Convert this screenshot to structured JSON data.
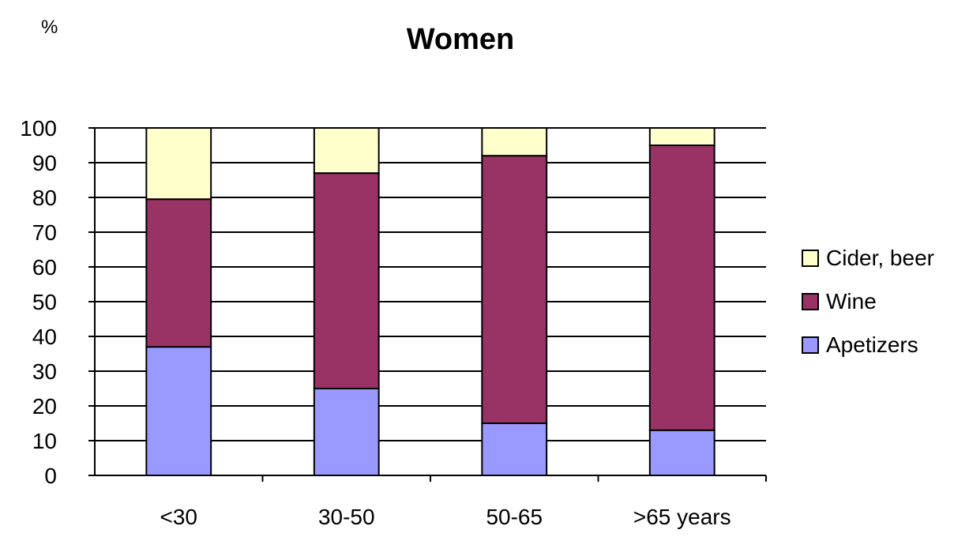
{
  "chart_data": {
    "type": "bar",
    "stacked": true,
    "title": "Women",
    "ylabel": "%",
    "xlabel": "",
    "categories": [
      "<30",
      "30-50",
      "50-65",
      ">65 years"
    ],
    "series": [
      {
        "name": "Apetizers",
        "color": "#9999ff",
        "values": [
          37,
          25,
          15,
          13
        ]
      },
      {
        "name": "Wine",
        "color": "#993366",
        "values": [
          42.5,
          62,
          77,
          82
        ]
      },
      {
        "name": "Cider, beer",
        "color": "#ffffcc",
        "values": [
          20.5,
          13,
          8,
          5
        ]
      }
    ],
    "legend_order": [
      "Cider, beer",
      "Wine",
      "Apetizers"
    ],
    "ylim": [
      0,
      100
    ],
    "yticks": [
      "0",
      "10",
      "20",
      "30",
      "40",
      "50",
      "60",
      "70",
      "80",
      "90",
      "100"
    ],
    "grid": true,
    "legend_position": "right"
  }
}
